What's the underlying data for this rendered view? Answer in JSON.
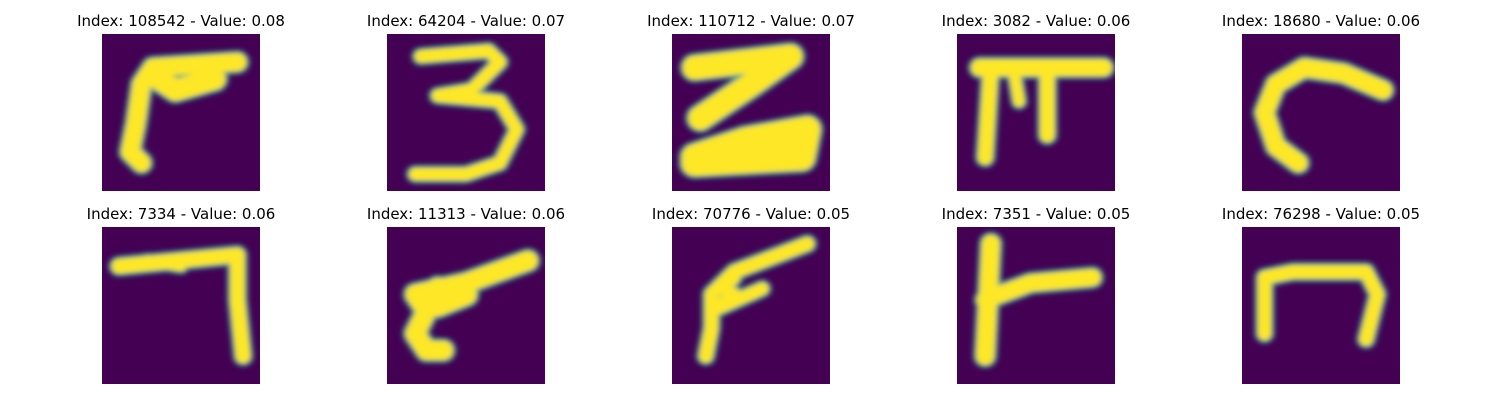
{
  "chart_data": {
    "type": "image_grid",
    "grid": {
      "rows": 2,
      "cols": 5
    },
    "background_color": "#440154",
    "stroke_color": "#fde725",
    "edge_color": "#21918c",
    "panels": [
      {
        "title": "Index: 108542 - Value: 0.08",
        "glyph": "hook-left"
      },
      {
        "title": "Index: 64204 - Value: 0.07",
        "glyph": "digit-three"
      },
      {
        "title": "Index: 110712 - Value: 0.07",
        "glyph": "z-shape"
      },
      {
        "title": "Index: 3082 - Value: 0.06",
        "glyph": "pi-shape"
      },
      {
        "title": "Index: 18680 - Value: 0.06",
        "glyph": "c-curve"
      },
      {
        "title": "Index: 7334 - Value: 0.06",
        "glyph": "seven-shape"
      },
      {
        "title": "Index: 11313 - Value: 0.06",
        "glyph": "gun-shape"
      },
      {
        "title": "Index: 70776 - Value: 0.05",
        "glyph": "flag-shape"
      },
      {
        "title": "Index: 7351 - Value: 0.05",
        "glyph": "t-side-shape"
      },
      {
        "title": "Index: 76298 - Value: 0.05",
        "glyph": "n-shape"
      }
    ]
  }
}
